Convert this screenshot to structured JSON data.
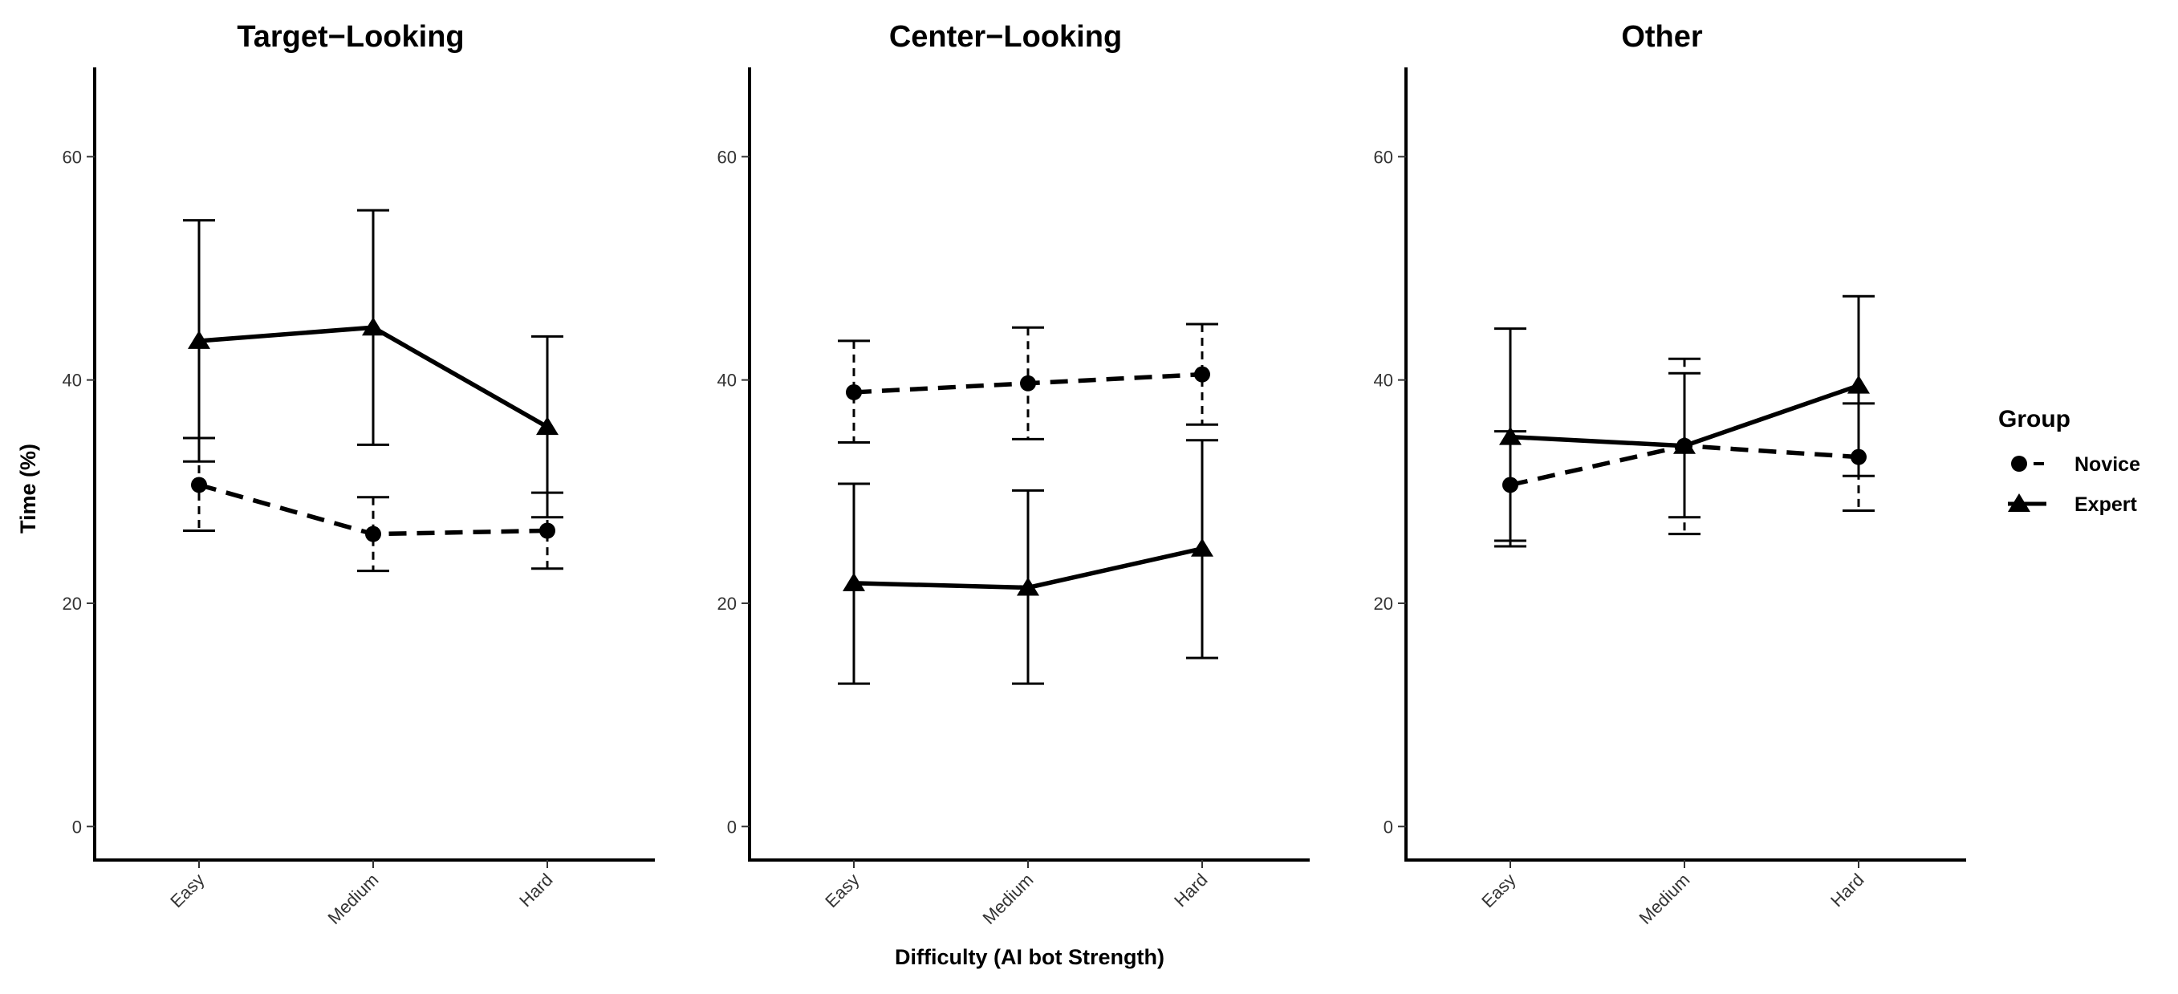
{
  "chart_data": {
    "type": "line",
    "ylabel": "Time (%)",
    "xlabel": "Difficulty (AI bot Strength)",
    "categories": [
      "Easy",
      "Medium",
      "Hard"
    ],
    "ylim": [
      -3,
      68
    ],
    "yticks": [
      0,
      20,
      40,
      60
    ],
    "legend": {
      "title": "Group",
      "placement": "right",
      "entries": [
        {
          "name": "Novice",
          "marker": "circle",
          "linestyle": "dashed"
        },
        {
          "name": "Expert",
          "marker": "triangle",
          "linestyle": "solid"
        }
      ]
    },
    "panels": [
      {
        "title": "Target−Looking",
        "series": [
          {
            "name": "Novice",
            "values": [
              30.6,
              26.2,
              26.5
            ],
            "lower": [
              26.5,
              22.9,
              23.1
            ],
            "upper": [
              34.8,
              29.5,
              29.9
            ]
          },
          {
            "name": "Expert",
            "values": [
              43.5,
              44.7,
              35.8
            ],
            "lower": [
              32.7,
              34.2,
              27.7
            ],
            "upper": [
              54.3,
              55.2,
              43.9
            ]
          }
        ]
      },
      {
        "title": "Center−Looking",
        "series": [
          {
            "name": "Novice",
            "values": [
              38.9,
              39.7,
              40.5
            ],
            "lower": [
              34.4,
              34.7,
              36.0
            ],
            "upper": [
              43.5,
              44.7,
              45.0
            ]
          },
          {
            "name": "Expert",
            "values": [
              21.8,
              21.4,
              24.9
            ],
            "lower": [
              12.8,
              12.8,
              15.1
            ],
            "upper": [
              30.7,
              30.1,
              34.6
            ]
          }
        ]
      },
      {
        "title": "Other",
        "series": [
          {
            "name": "Novice",
            "values": [
              30.6,
              34.1,
              33.1
            ],
            "lower": [
              25.6,
              26.2,
              28.3
            ],
            "upper": [
              35.4,
              41.9,
              37.9
            ]
          },
          {
            "name": "Expert",
            "values": [
              34.9,
              34.1,
              39.5
            ],
            "lower": [
              25.1,
              27.7,
              31.4
            ],
            "upper": [
              44.6,
              40.6,
              47.5
            ]
          }
        ]
      }
    ]
  }
}
